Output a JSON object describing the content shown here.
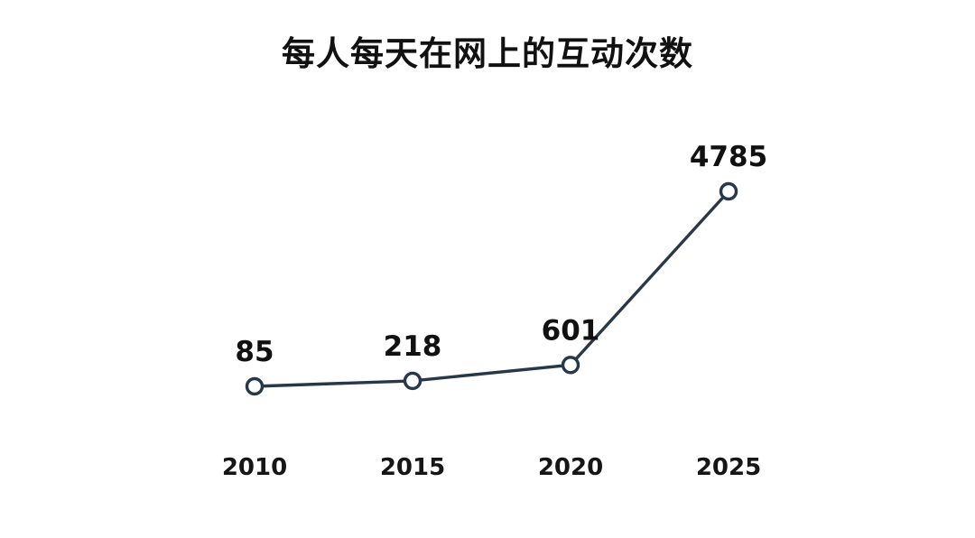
{
  "page": {
    "background": "#ffffff"
  },
  "chart": {
    "title": "每人每天在网上的互动次数",
    "line_color": "#263849",
    "marker_fill": "#ffffff",
    "text_color": "#111111"
  },
  "chart_data": {
    "type": "line",
    "title": "每人每天在网上的互动次数",
    "categories": [
      "2010",
      "2015",
      "2020",
      "2025"
    ],
    "values": [
      85,
      218,
      601,
      4785
    ],
    "series": [
      {
        "name": "每人每天在网上的互动次数",
        "values": [
          85,
          218,
          601,
          4785
        ]
      }
    ],
    "data_labels": [
      "85",
      "218",
      "601",
      "4785"
    ],
    "xlabel": "",
    "ylabel": "",
    "ylim": [
      85,
      4785
    ],
    "grid": false,
    "legend": "none",
    "axes_visible": false,
    "marker": "open-circle"
  }
}
